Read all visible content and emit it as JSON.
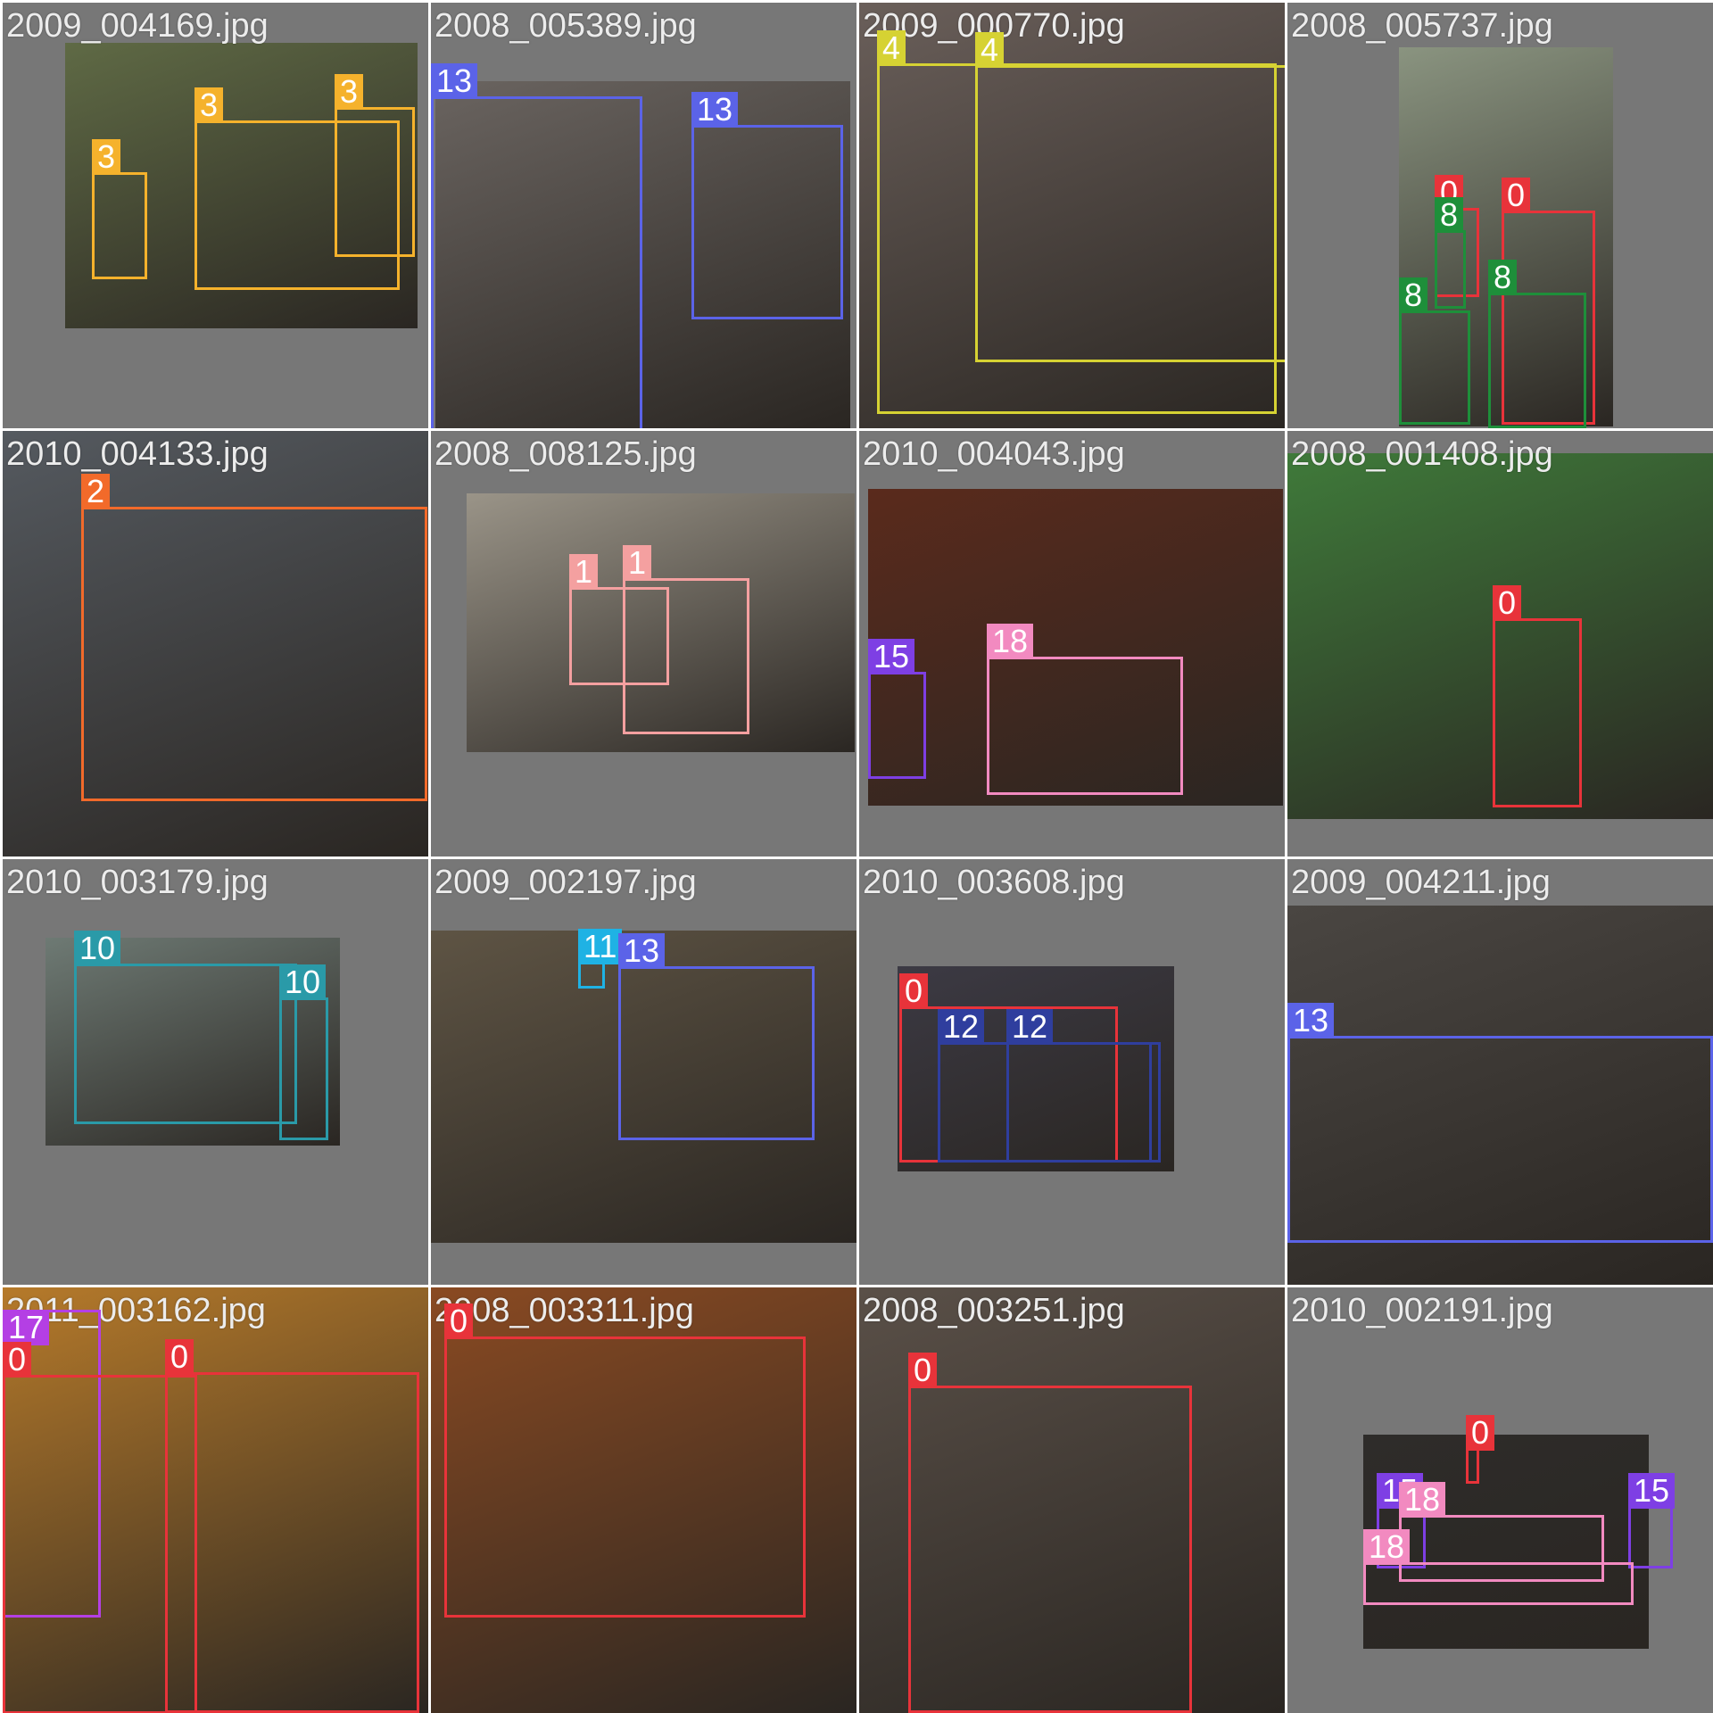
{
  "palette": {
    "0": "#e8333a",
    "1": "#f4a0a0",
    "2": "#f26a2a",
    "3": "#f5b22c",
    "4": "#d6d233",
    "8": "#1e8f3a",
    "10": "#2a9aa8",
    "11": "#1fb2e4",
    "12": "#2f3e9e",
    "13": "#5b63e8",
    "15": "#7e3fe4",
    "17": "#b43fe4",
    "18": "#f28ac0"
  },
  "tiles": [
    {
      "file": "2009_004169.jpg",
      "tint": "#5f6a45",
      "boxes": [
        {
          "label": "3"
        },
        {
          "label": "3"
        },
        {
          "label": "3"
        }
      ]
    },
    {
      "file": "2008_005389.jpg",
      "tint": "#6a6460",
      "boxes": [
        {
          "label": "13"
        },
        {
          "label": "13"
        }
      ]
    },
    {
      "file": "2009_000770.jpg",
      "tint": "#6a5f5a",
      "boxes": [
        {
          "label": "4"
        },
        {
          "label": "4"
        }
      ]
    },
    {
      "file": "2008_005737.jpg",
      "tint": "#8a9480",
      "boxes": [
        {
          "label": "0"
        },
        {
          "label": "0"
        },
        {
          "label": "8"
        },
        {
          "label": "8"
        },
        {
          "label": "8"
        }
      ]
    },
    {
      "file": "2010_004133.jpg",
      "tint": "#555a60",
      "boxes": [
        {
          "label": "2"
        }
      ]
    },
    {
      "file": "2008_008125.jpg",
      "tint": "#9a9488",
      "boxes": [
        {
          "label": "1"
        },
        {
          "label": "1"
        }
      ]
    },
    {
      "file": "2010_004043.jpg",
      "tint": "#5a2a1c",
      "boxes": [
        {
          "label": "15"
        },
        {
          "label": "18"
        }
      ]
    },
    {
      "file": "2008_001408.jpg",
      "tint": "#3f7a3a",
      "boxes": [
        {
          "label": "0"
        }
      ]
    },
    {
      "file": "2010_003179.jpg",
      "tint": "#6e7a74",
      "boxes": [
        {
          "label": "10"
        },
        {
          "label": "10"
        }
      ]
    },
    {
      "file": "2009_002197.jpg",
      "tint": "#5e5444",
      "boxes": [
        {
          "label": "11"
        },
        {
          "label": "13"
        }
      ]
    },
    {
      "file": "2010_003608.jpg",
      "tint": "#3c3a44",
      "boxes": [
        {
          "label": "0"
        },
        {
          "label": "12"
        },
        {
          "label": "12"
        }
      ]
    },
    {
      "file": "2009_004211.jpg",
      "tint": "#4a4642",
      "boxes": [
        {
          "label": "13"
        }
      ]
    },
    {
      "file": "2011_003162.jpg",
      "tint": "#b67a2a",
      "boxes": [
        {
          "label": "17"
        },
        {
          "label": "0"
        },
        {
          "label": "0"
        }
      ]
    },
    {
      "file": "2008_003311.jpg",
      "tint": "#8a4a22",
      "boxes": [
        {
          "label": "0"
        }
      ]
    },
    {
      "file": "2008_003251.jpg",
      "tint": "#5a5048",
      "boxes": [
        {
          "label": "0"
        }
      ]
    },
    {
      "file": "2010_002191.jpg",
      "tint": "#2e2c2a",
      "boxes": [
        {
          "label": "0"
        },
        {
          "label": "15"
        },
        {
          "label": "15"
        },
        {
          "label": "18"
        },
        {
          "label": "18"
        }
      ]
    }
  ]
}
